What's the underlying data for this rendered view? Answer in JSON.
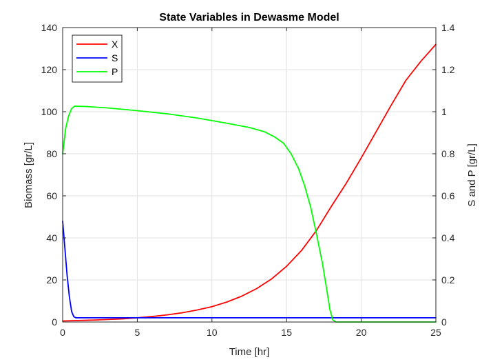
{
  "chart_data": {
    "type": "line",
    "title": "State Variables in Dewasme Model",
    "xlabel": "Time [hr]",
    "ylabel_left": "Biomass [gr/L]",
    "ylabel_right": "S and P [gr/L]",
    "xlim": [
      0,
      25
    ],
    "ylim_left": [
      0,
      140
    ],
    "ylim_right": [
      0,
      1.4
    ],
    "x_ticks": [
      0,
      5,
      10,
      15,
      20,
      25
    ],
    "y_left_ticks": [
      0,
      20,
      40,
      60,
      80,
      100,
      120,
      140
    ],
    "y_right_ticks": [
      "0",
      "0.2",
      "0.4",
      "0.6",
      "0.8",
      "1",
      "1.2",
      "1.4"
    ],
    "grid": true,
    "legend_position": "top-left",
    "series": [
      {
        "name": "X",
        "axis": "left",
        "color": "#ff0000",
        "points": [
          [
            0,
            0.5
          ],
          [
            1,
            0.7
          ],
          [
            2,
            0.9
          ],
          [
            3,
            1.2
          ],
          [
            4,
            1.5
          ],
          [
            5,
            2.0
          ],
          [
            6,
            2.6
          ],
          [
            7,
            3.4
          ],
          [
            8,
            4.4
          ],
          [
            9,
            5.7
          ],
          [
            10,
            7.3
          ],
          [
            11,
            9.5
          ],
          [
            12,
            12.3
          ],
          [
            13,
            15.9
          ],
          [
            14,
            20.5
          ],
          [
            15,
            26.5
          ],
          [
            16,
            34.0
          ],
          [
            17,
            43.5
          ],
          [
            18,
            55.0
          ],
          [
            19,
            66.0
          ],
          [
            20,
            78.0
          ],
          [
            21,
            90.5
          ],
          [
            22,
            103.0
          ],
          [
            23,
            115.0
          ],
          [
            24,
            124.0
          ],
          [
            25,
            132.0
          ]
        ]
      },
      {
        "name": "S",
        "axis": "right",
        "color": "#0000ff",
        "points": [
          [
            0,
            0.48
          ],
          [
            0.15,
            0.35
          ],
          [
            0.3,
            0.22
          ],
          [
            0.45,
            0.12
          ],
          [
            0.6,
            0.05
          ],
          [
            0.75,
            0.025
          ],
          [
            0.9,
            0.02
          ],
          [
            2,
            0.02
          ],
          [
            5,
            0.02
          ],
          [
            10,
            0.02
          ],
          [
            15,
            0.02
          ],
          [
            18,
            0.02
          ],
          [
            20,
            0.02
          ],
          [
            25,
            0.02
          ]
        ]
      },
      {
        "name": "P",
        "axis": "right",
        "color": "#00ff00",
        "points": [
          [
            0,
            0.8
          ],
          [
            0.2,
            0.92
          ],
          [
            0.4,
            0.98
          ],
          [
            0.6,
            1.015
          ],
          [
            0.8,
            1.026
          ],
          [
            1.5,
            1.025
          ],
          [
            3,
            1.018
          ],
          [
            5,
            1.005
          ],
          [
            7,
            0.99
          ],
          [
            9,
            0.97
          ],
          [
            11,
            0.945
          ],
          [
            12.5,
            0.925
          ],
          [
            13.5,
            0.905
          ],
          [
            14.2,
            0.88
          ],
          [
            14.8,
            0.85
          ],
          [
            15.3,
            0.8
          ],
          [
            15.8,
            0.73
          ],
          [
            16.2,
            0.65
          ],
          [
            16.6,
            0.55
          ],
          [
            17.0,
            0.42
          ],
          [
            17.4,
            0.28
          ],
          [
            17.7,
            0.15
          ],
          [
            17.9,
            0.06
          ],
          [
            18.1,
            0.01
          ],
          [
            18.3,
            0.0
          ],
          [
            20,
            0.0
          ],
          [
            25,
            0.0
          ]
        ]
      }
    ]
  }
}
